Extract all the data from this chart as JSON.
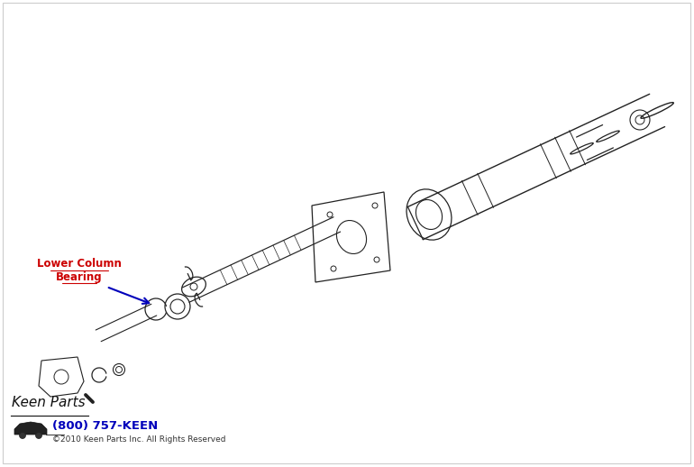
{
  "background_color": "#ffffff",
  "label_line1": "Lower Column",
  "label_line2": "Bearing",
  "label_color": "#cc0000",
  "arrow_color": "#0000bb",
  "phone_text": "(800) 757-KEEN",
  "phone_color": "#0000bb",
  "copyright_text": "©2010 Keen Parts Inc. All Rights Reserved",
  "copyright_color": "#333333",
  "fig_width": 7.7,
  "fig_height": 5.18,
  "dpi": 100,
  "line_color": "#222222",
  "border_color": "#bbbbbb"
}
